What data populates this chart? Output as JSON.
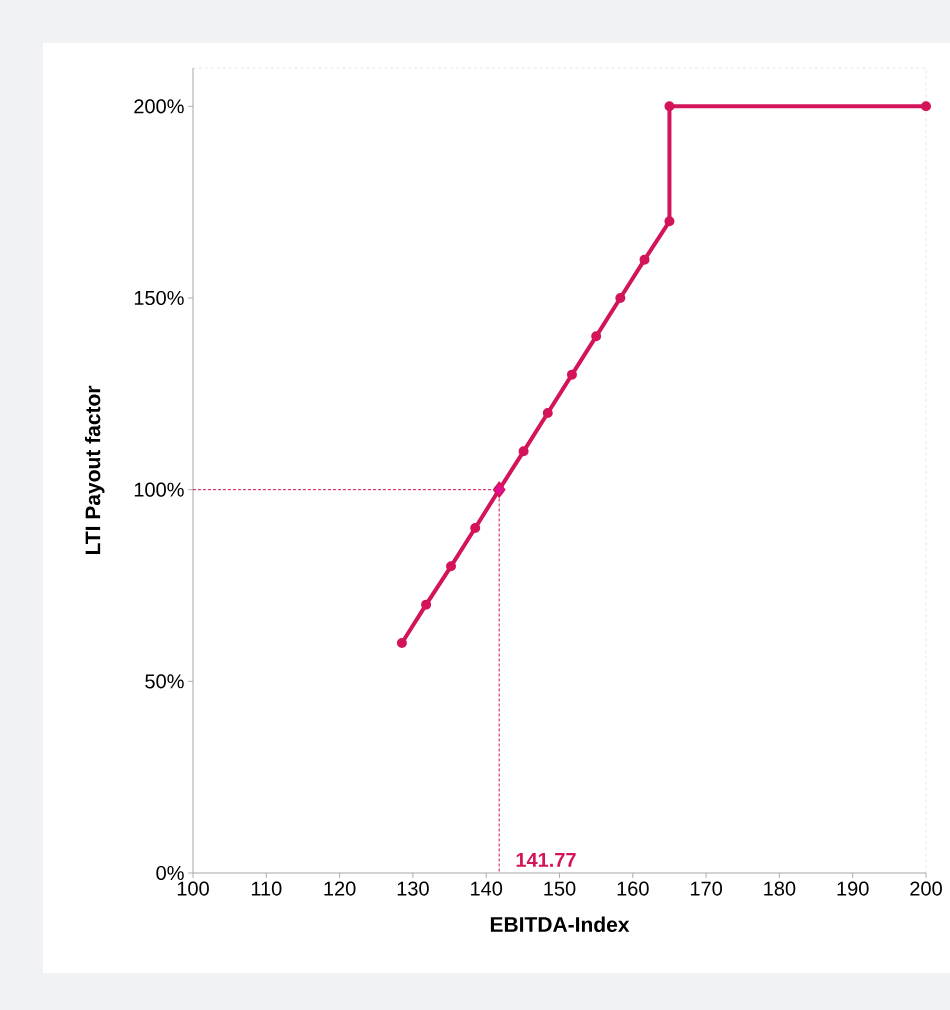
{
  "chart_data": {
    "type": "line",
    "xlabel": "EBITDA-Index",
    "ylabel": "LTI  Payout  factor",
    "xlim": [
      100,
      200
    ],
    "xticks": [
      100,
      110,
      120,
      130,
      140,
      150,
      160,
      170,
      180,
      190,
      200
    ],
    "ylim": [
      0,
      210
    ],
    "yticks": [
      {
        "value": 0,
        "label": "0%"
      },
      {
        "value": 50,
        "label": "50%"
      },
      {
        "value": 100,
        "label": "100%"
      },
      {
        "value": 150,
        "label": "150%"
      },
      {
        "value": 200,
        "label": "200%"
      }
    ],
    "grid": false,
    "series": [
      {
        "color": "#d4145a",
        "marker": "circle",
        "line_style": "solid",
        "x": [
          128.5,
          131.8,
          135.2,
          138.5,
          141.77,
          145.1,
          148.4,
          151.7,
          155.0,
          158.3,
          161.6,
          165,
          165,
          200
        ],
        "values": [
          60,
          70,
          80,
          90,
          100,
          110,
          120,
          130,
          140,
          150,
          160,
          170,
          200,
          200
        ]
      },
      {
        "type": "line",
        "color": "#d4145a",
        "marker": "none",
        "line_style": "dashed",
        "x": [
          100,
          141.77,
          141.77
        ],
        "values": [
          100,
          100,
          0
        ]
      },
      {
        "type": "scatter",
        "color": "#d4145a",
        "marker": "diamond",
        "x": [
          141.77
        ],
        "values": [
          100
        ]
      }
    ],
    "annotations": [
      {
        "text": "141.77",
        "x": 141.77,
        "y": 0
      }
    ]
  }
}
